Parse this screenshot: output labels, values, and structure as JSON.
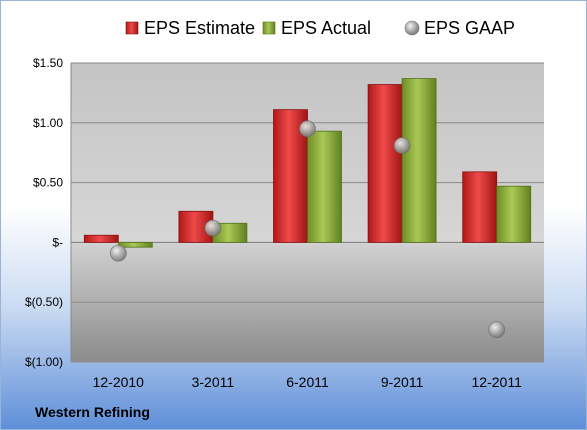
{
  "chart_data": {
    "type": "bar",
    "categories": [
      "12-2010",
      "3-2011",
      "6-2011",
      "9-2011",
      "12-2011"
    ],
    "series": [
      {
        "name": "EPS Estimate",
        "kind": "bar",
        "color": "#d42a2a",
        "values": [
          0.06,
          0.26,
          1.11,
          1.32,
          0.59
        ]
      },
      {
        "name": "EPS Actual",
        "kind": "bar",
        "color": "#8fb03a",
        "values": [
          -0.04,
          0.16,
          0.93,
          1.37,
          0.47
        ]
      },
      {
        "name": "EPS GAAP",
        "kind": "marker",
        "color": "#b8b8b8",
        "values": [
          -0.09,
          0.12,
          0.95,
          0.81,
          -0.73
        ]
      }
    ],
    "ylim": [
      -1.0,
      1.5
    ],
    "yticks": [
      1.5,
      1.0,
      0.5,
      0,
      -0.5,
      -1.0
    ],
    "ytick_labels": [
      "$1.50",
      "$1.00",
      "$0.50",
      "$-",
      "$(0.50)",
      "$(1.00)"
    ],
    "grid": true,
    "legend_position": "top"
  },
  "footer": {
    "company": "Western Refining"
  }
}
